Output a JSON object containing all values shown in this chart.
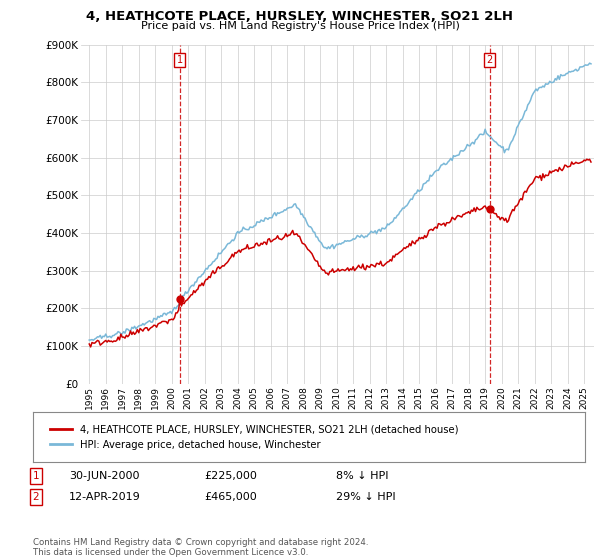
{
  "title": "4, HEATHCOTE PLACE, HURSLEY, WINCHESTER, SO21 2LH",
  "subtitle": "Price paid vs. HM Land Registry's House Price Index (HPI)",
  "ylabel_ticks": [
    "£0",
    "£100K",
    "£200K",
    "£300K",
    "£400K",
    "£500K",
    "£600K",
    "£700K",
    "£800K",
    "£900K"
  ],
  "ylim": [
    0,
    900000
  ],
  "xlim_start": 1994.5,
  "xlim_end": 2025.6,
  "hpi_color": "#7ab8d8",
  "price_color": "#cc0000",
  "marker1_x": 2000.5,
  "marker1_y": 225000,
  "marker2_x": 2019.28,
  "marker2_y": 465000,
  "legend_line1": "4, HEATHCOTE PLACE, HURSLEY, WINCHESTER, SO21 2LH (detached house)",
  "legend_line2": "HPI: Average price, detached house, Winchester",
  "ann1_date": "30-JUN-2000",
  "ann1_price": "£225,000",
  "ann1_hpi": "8% ↓ HPI",
  "ann2_date": "12-APR-2019",
  "ann2_price": "£465,000",
  "ann2_hpi": "29% ↓ HPI",
  "footer": "Contains HM Land Registry data © Crown copyright and database right 2024.\nThis data is licensed under the Open Government Licence v3.0.",
  "background_color": "#ffffff",
  "grid_color": "#cccccc"
}
